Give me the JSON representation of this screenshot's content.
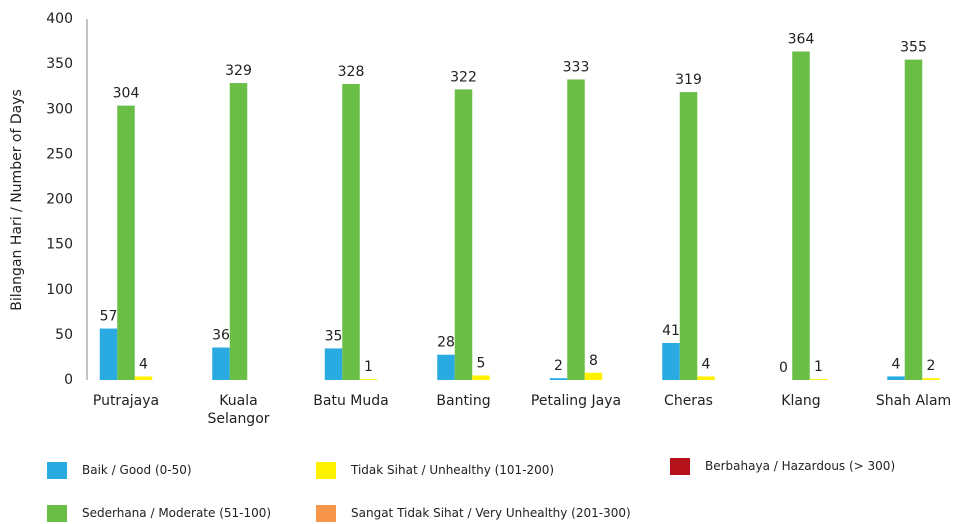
{
  "chart_data": {
    "type": "bar",
    "ylabel": "Bilangan Hari / Number of Days",
    "categories": [
      "Putrajaya",
      "Kuala\nSelangor",
      "Batu Muda",
      "Banting",
      "Petaling Jaya",
      "Cheras",
      "Klang",
      "Shah Alam"
    ],
    "series": [
      {
        "name": "Baik / Good (0-50)",
        "color": "#29abe2",
        "values": [
          57,
          36,
          35,
          28,
          2,
          41,
          0,
          4
        ]
      },
      {
        "name": "Sederhana / Moderate (51-100)",
        "color": "#6abd45",
        "values": [
          304,
          329,
          328,
          322,
          333,
          319,
          364,
          355
        ]
      },
      {
        "name": "Tidak Sihat / Unhealthy (101-200)",
        "color": "#fff200",
        "values": [
          4,
          null,
          1,
          5,
          8,
          4,
          1,
          2
        ]
      },
      {
        "name": "Sangat Tidak Sihat / Very Unhealthy (201-300)",
        "color": "#f7964a",
        "values": [
          null,
          null,
          null,
          null,
          null,
          null,
          null,
          null
        ]
      },
      {
        "name": "Berbahaya / Hazardous (> 300)",
        "color": "#b5121b",
        "values": [
          null,
          null,
          null,
          null,
          null,
          null,
          null,
          null
        ]
      }
    ],
    "ylim": [
      0,
      400
    ],
    "yticks": [
      0,
      50,
      100,
      150,
      200,
      250,
      300,
      350,
      400
    ],
    "grid": false
  }
}
